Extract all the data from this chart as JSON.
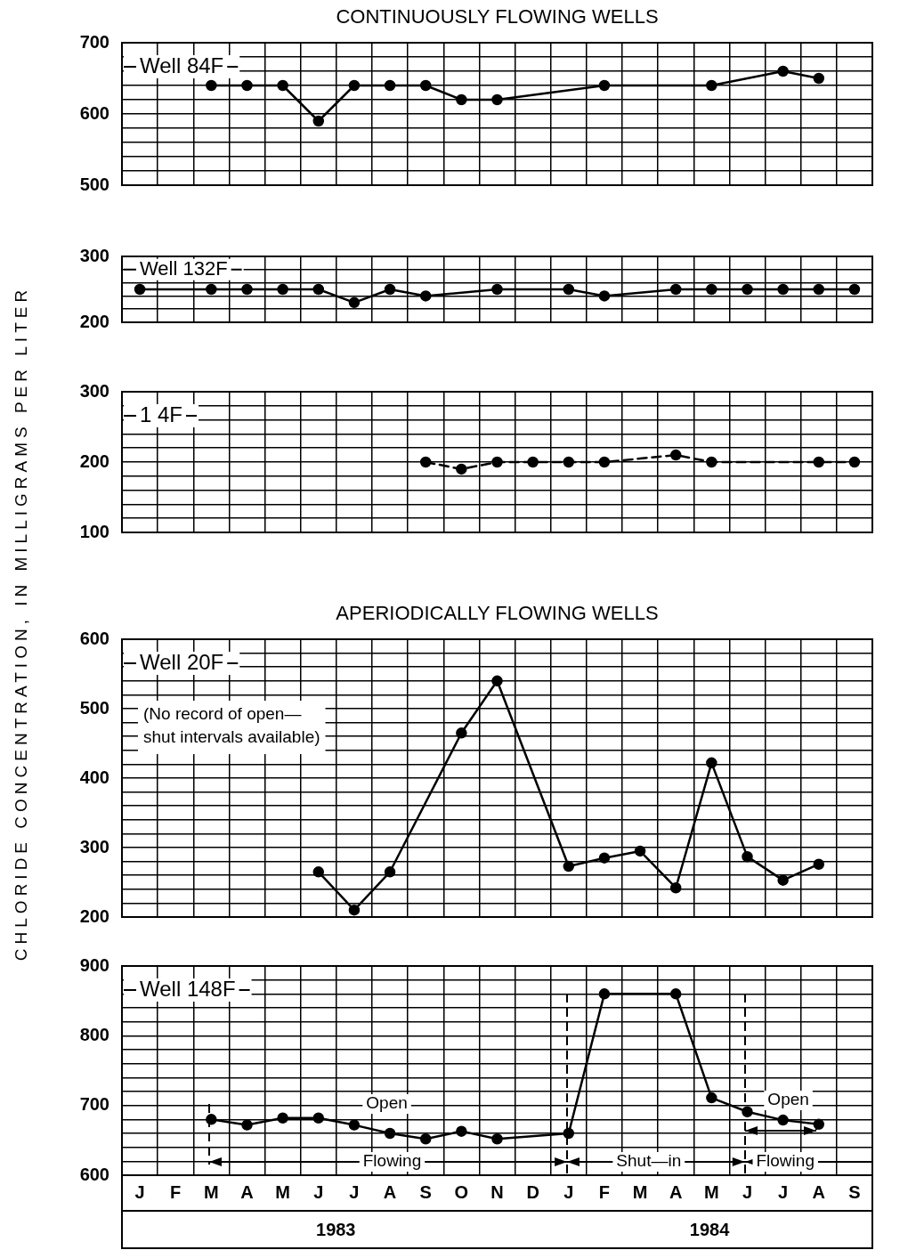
{
  "chart_data": [
    {
      "type": "line",
      "title": "CONTINUOUSLY FLOWING WELLS",
      "ylabel": "CHLORIDE CONCENTRATION, IN MILLIGRAMS PER LITER",
      "legend": "top left",
      "grid": true,
      "marker": "circle",
      "tick_labels": "y",
      "categories": [
        null,
        null,
        null,
        null,
        null,
        null,
        null,
        null,
        null,
        null,
        null,
        null,
        null,
        null,
        null,
        null,
        null,
        null,
        null,
        null,
        null
      ],
      "series": [
        {
          "name": "Well 84F",
          "color": "#000000",
          "values": [
            null,
            null,
            640,
            640,
            640,
            590,
            640,
            640,
            640,
            620,
            620,
            null,
            null,
            640,
            null,
            null,
            640,
            null,
            660,
            650,
            null
          ]
        }
      ],
      "ylim": [
        500,
        700
      ],
      "yticks": [
        500,
        {
          "value": 520,
          "label": null
        },
        {
          "value": 540,
          "label": null
        },
        {
          "value": 560,
          "label": null
        },
        {
          "value": 580,
          "label": null
        },
        600,
        {
          "value": 620,
          "label": null
        },
        {
          "value": 640,
          "label": null
        },
        {
          "value": 660,
          "label": null
        },
        {
          "value": 680,
          "label": null
        },
        700
      ]
    },
    {
      "type": "line",
      "legend": "top left",
      "grid": true,
      "marker": "circle",
      "tick_labels": "y",
      "categories": [
        null,
        null,
        null,
        null,
        null,
        null,
        null,
        null,
        null,
        null,
        null,
        null,
        null,
        null,
        null,
        null,
        null,
        null,
        null,
        null,
        null
      ],
      "series": [
        {
          "name": "Well 132F",
          "color": "#000000",
          "values": [
            250,
            null,
            250,
            250,
            250,
            250,
            230,
            250,
            240,
            null,
            250,
            null,
            250,
            240,
            null,
            250,
            250,
            250,
            250,
            250,
            250
          ]
        }
      ],
      "ylim": [
        200,
        300
      ],
      "yticks": [
        200,
        {
          "value": 220,
          "label": null
        },
        {
          "value": 240,
          "label": null
        },
        {
          "value": 260,
          "label": null
        },
        {
          "value": 280,
          "label": null
        },
        300
      ]
    },
    {
      "type": "line",
      "legend": "top left",
      "grid": true,
      "marker": "circle",
      "line_style": "dashed",
      "tick_labels": "y",
      "categories": [
        null,
        null,
        null,
        null,
        null,
        null,
        null,
        null,
        null,
        null,
        null,
        null,
        null,
        null,
        null,
        null,
        null,
        null,
        null,
        null,
        null
      ],
      "series": [
        {
          "name": "1 4F",
          "color": "#000000",
          "values": [
            null,
            null,
            null,
            null,
            null,
            null,
            null,
            null,
            200,
            190,
            200,
            200,
            200,
            200,
            null,
            210,
            200,
            null,
            null,
            200,
            200
          ]
        }
      ],
      "ylim": [
        100,
        300
      ],
      "yticks": [
        100,
        {
          "value": 120,
          "label": null
        },
        {
          "value": 140,
          "label": null
        },
        {
          "value": 160,
          "label": null
        },
        {
          "value": 180,
          "label": null
        },
        200,
        {
          "value": 220,
          "label": null
        },
        {
          "value": 240,
          "label": null
        },
        {
          "value": 260,
          "label": null
        },
        {
          "value": 280,
          "label": null
        },
        300
      ]
    },
    {
      "type": "line",
      "title": "APERIODICALLY FLOWING WELLS",
      "legend": "top left",
      "grid": true,
      "marker": "circle",
      "tick_labels": "y",
      "annotations": [
        "(No record of open—\nshut intervals available)"
      ],
      "categories": [
        null,
        null,
        null,
        null,
        null,
        null,
        null,
        null,
        null,
        null,
        null,
        null,
        null,
        null,
        null,
        null,
        null,
        null,
        null,
        null,
        null
      ],
      "series": [
        {
          "name": "Well 20F",
          "color": "#000000",
          "values": [
            null,
            null,
            null,
            null,
            null,
            265,
            210,
            265,
            null,
            465,
            540,
            null,
            273,
            285,
            295,
            242,
            422,
            287,
            253,
            276,
            null
          ]
        }
      ],
      "ylim": [
        200,
        600
      ],
      "yticks": [
        200,
        {
          "value": 220,
          "label": null
        },
        {
          "value": 240,
          "label": null
        },
        {
          "value": 260,
          "label": null
        },
        {
          "value": 280,
          "label": null
        },
        300,
        {
          "value": 320,
          "label": null
        },
        {
          "value": 340,
          "label": null
        },
        {
          "value": 360,
          "label": null
        },
        {
          "value": 380,
          "label": null
        },
        400,
        {
          "value": 420,
          "label": null
        },
        {
          "value": 440,
          "label": null
        },
        {
          "value": 460,
          "label": null
        },
        {
          "value": 480,
          "label": null
        },
        500,
        {
          "value": 520,
          "label": null
        },
        {
          "value": 540,
          "label": null
        },
        {
          "value": 560,
          "label": null
        },
        {
          "value": 580,
          "label": null
        },
        600
      ]
    },
    {
      "type": "line",
      "legend": "top left",
      "grid": true,
      "marker": "circle",
      "annotations": [
        "Open",
        "Flowing",
        "Shut—in",
        "Open",
        "Flowing",
        "1983",
        "1984"
      ],
      "categories": [
        "J",
        "F",
        "M",
        "A",
        "M",
        "J",
        "J",
        "A",
        "S",
        "O",
        "N",
        "D",
        "J",
        "F",
        "M",
        "A",
        "M",
        "J",
        "J",
        "A",
        "S"
      ],
      "series": [
        {
          "name": "Well 148F",
          "color": "#000000",
          "values": [
            null,
            null,
            680,
            672,
            682,
            682,
            672,
            660,
            652,
            663,
            652,
            null,
            660,
            860,
            null,
            860,
            711,
            691,
            679,
            673,
            null
          ]
        }
      ],
      "ylim": [
        600,
        900
      ],
      "yticks": [
        600,
        {
          "value": 620,
          "label": null
        },
        {
          "value": 640,
          "label": null
        },
        {
          "value": 660,
          "label": null
        },
        {
          "value": 680,
          "label": null
        },
        700,
        {
          "value": 720,
          "label": null
        },
        {
          "value": 740,
          "label": null
        },
        {
          "value": 760,
          "label": null
        },
        {
          "value": 780,
          "label": null
        },
        800,
        {
          "value": 820,
          "label": null
        },
        {
          "value": 840,
          "label": null
        },
        {
          "value": 860,
          "label": null
        },
        {
          "value": 880,
          "label": null
        },
        900
      ]
    }
  ]
}
